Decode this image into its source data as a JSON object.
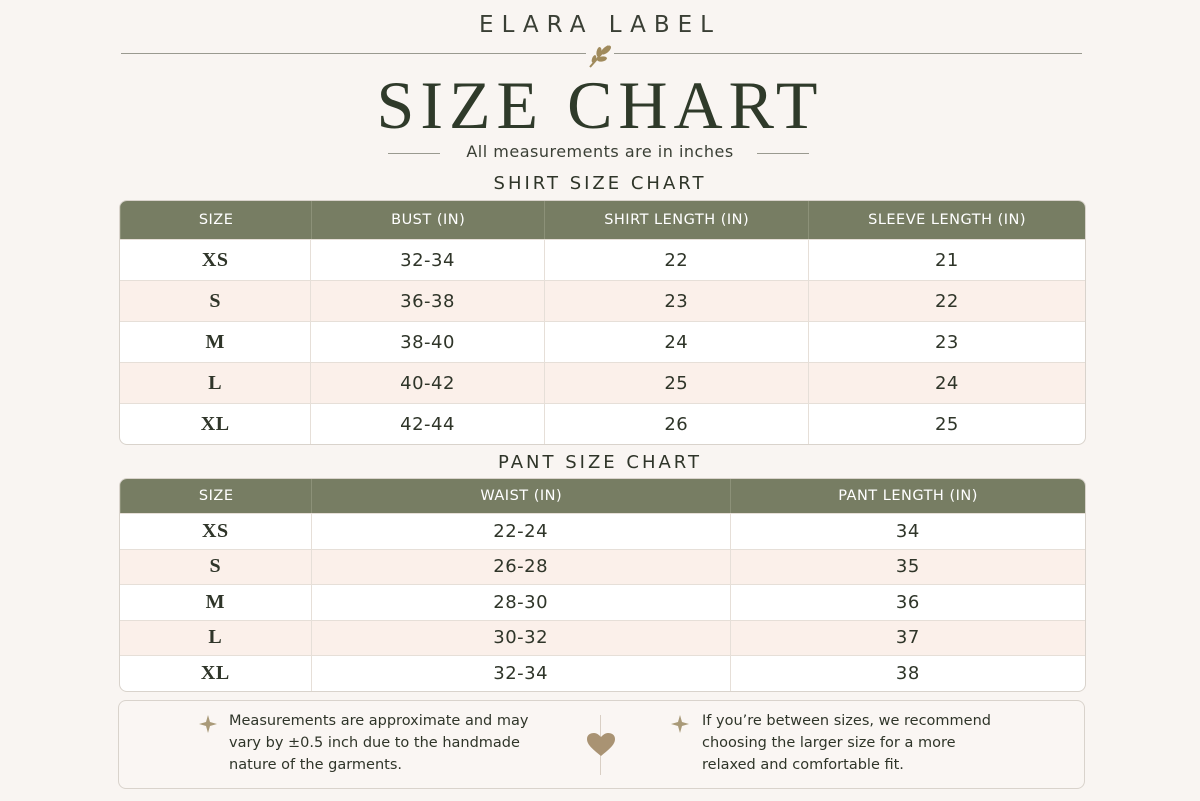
{
  "header": {
    "brand": "ELARA LABEL",
    "title": "SIZE CHART",
    "subtitle": "All measurements are in inches"
  },
  "shirt_table": {
    "title": "SHIRT SIZE CHART",
    "columns": [
      "SIZE",
      "BUST (IN)",
      "SHIRT LENGTH (IN)",
      "SLEEVE LENGTH (IN)"
    ],
    "rows": [
      [
        "XS",
        "32-34",
        "22",
        "21"
      ],
      [
        "S",
        "36-38",
        "23",
        "22"
      ],
      [
        "M",
        "38-40",
        "24",
        "23"
      ],
      [
        "L",
        "40-42",
        "25",
        "24"
      ],
      [
        "XL",
        "42-44",
        "26",
        "25"
      ]
    ]
  },
  "pant_table": {
    "title": "PANT SIZE CHART",
    "columns": [
      "SIZE",
      "WAIST (IN)",
      "PANT LENGTH (IN)"
    ],
    "rows": [
      [
        "XS",
        "22-24",
        "34"
      ],
      [
        "S",
        "26-28",
        "35"
      ],
      [
        "M",
        "28-30",
        "36"
      ],
      [
        "L",
        "30-32",
        "37"
      ],
      [
        "XL",
        "32-34",
        "38"
      ]
    ]
  },
  "notes": [
    "Measurements are approximate and may vary by ±0.5 inch due to the handmade nature of the garments.",
    "If you’re between sizes, we recommend choosing the larger size for a more relaxed and comfortable fit."
  ]
}
